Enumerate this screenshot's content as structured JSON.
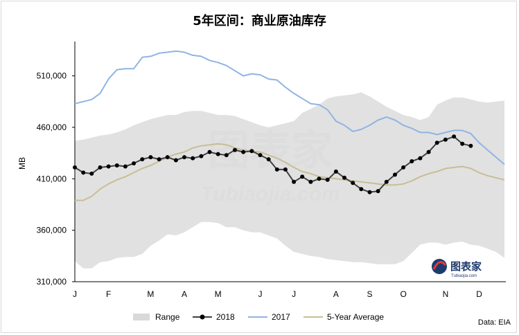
{
  "chart_data": {
    "type": "line",
    "title": "5年区间：商业原油库存",
    "ylabel": "MB",
    "ylim": [
      310000,
      540000
    ],
    "yticks": [
      310000,
      360000,
      410000,
      460000,
      510000
    ],
    "ytick_labels": [
      "310,000",
      "360,000",
      "410,000",
      "460,000",
      "510,000"
    ],
    "x_weeks": 52,
    "month_labels": [
      "J",
      "F",
      "M",
      "A",
      "M",
      "J",
      "J",
      "A",
      "S",
      "O",
      "N",
      "D"
    ],
    "legend_position": "bottom",
    "source": "Data: EIA",
    "watermark": "图表家 Tubiaojia.com",
    "range": {
      "name": "Range",
      "upper": [
        447,
        448,
        450,
        452,
        453,
        455,
        458,
        462,
        465,
        468,
        470,
        472,
        472,
        475,
        476,
        476,
        474,
        472,
        472,
        471,
        468,
        465,
        462,
        460,
        462,
        464,
        466,
        474,
        478,
        482,
        488,
        490,
        491,
        492,
        494,
        490,
        485,
        480,
        476,
        472,
        470,
        467,
        470,
        482,
        486,
        489,
        489,
        487,
        485,
        484,
        485,
        486
      ],
      "lower": [
        330,
        323,
        323,
        329,
        330,
        333,
        334,
        334,
        337,
        345,
        350,
        356,
        355,
        358,
        363,
        368,
        368,
        367,
        363,
        363,
        360,
        358,
        358,
        355,
        352,
        345,
        339,
        337,
        335,
        334,
        332,
        331,
        330,
        329,
        329,
        328,
        327,
        327,
        327,
        330,
        338,
        346,
        348,
        348,
        346,
        348,
        349,
        346,
        345,
        342,
        339,
        333
      ]
    },
    "series": [
      {
        "name": "2018",
        "values": [
          421,
          416,
          415,
          421,
          422,
          423,
          422,
          425,
          429,
          431,
          429,
          431,
          428,
          431,
          430,
          432,
          436,
          434,
          433,
          438,
          436,
          437,
          433,
          429,
          419,
          419,
          407,
          412,
          407,
          410,
          409,
          417,
          411,
          406,
          400,
          397,
          398,
          407,
          414,
          421,
          427,
          430,
          436,
          445,
          448,
          451,
          444,
          442,
          null,
          null,
          null,
          null
        ]
      },
      {
        "name": "2017",
        "values": [
          483,
          485,
          487,
          493,
          507,
          516,
          517,
          517,
          528,
          529,
          532,
          533,
          534,
          533,
          530,
          529,
          525,
          523,
          520,
          515,
          510,
          512,
          511,
          507,
          506,
          499,
          493,
          488,
          483,
          482,
          477,
          466,
          462,
          456,
          458,
          462,
          467,
          470,
          467,
          462,
          459,
          455,
          455,
          453,
          455,
          457,
          457,
          454,
          445,
          438,
          431,
          424
        ]
      },
      {
        "name": "5-Year Average",
        "values": [
          389,
          389,
          393,
          400,
          405,
          409,
          412,
          416,
          420,
          423,
          427,
          431,
          434,
          436,
          440,
          442,
          443,
          444,
          443,
          440,
          438,
          437,
          436,
          433,
          430,
          426,
          421,
          417,
          415,
          412,
          411,
          410,
          409,
          408,
          407,
          406,
          405,
          404,
          404,
          405,
          408,
          412,
          415,
          417,
          420,
          421,
          422,
          420,
          416,
          413,
          411,
          409
        ]
      }
    ]
  }
}
